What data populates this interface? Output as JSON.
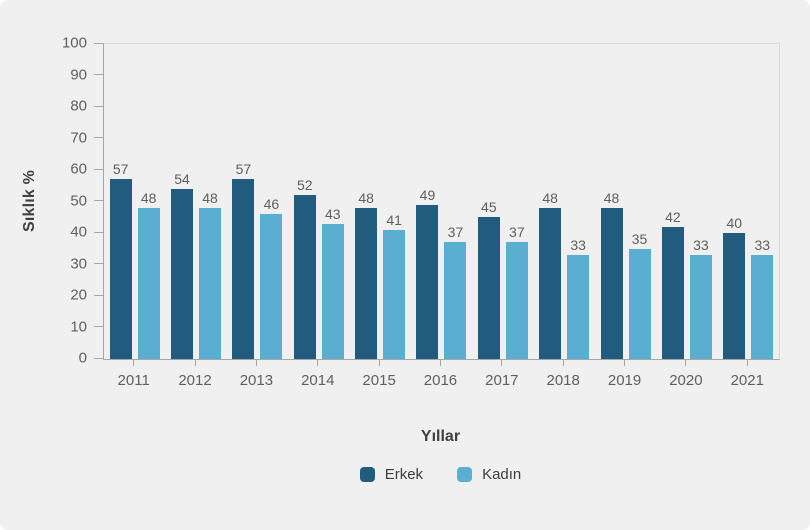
{
  "chart_data": {
    "type": "bar",
    "title": "",
    "xlabel": "Yıllar",
    "ylabel": "Sıklık %",
    "categories": [
      "2011",
      "2012",
      "2013",
      "2014",
      "2015",
      "2016",
      "2017",
      "2018",
      "2019",
      "2020",
      "2021"
    ],
    "series": [
      {
        "name": "Erkek",
        "color": "#215c7f",
        "values": [
          57,
          54,
          57,
          52,
          48,
          49,
          45,
          48,
          48,
          42,
          40
        ]
      },
      {
        "name": "Kadın",
        "color": "#5aaed2",
        "values": [
          48,
          48,
          46,
          43,
          41,
          37,
          37,
          33,
          35,
          33,
          33
        ]
      }
    ],
    "ylim": [
      0,
      100
    ],
    "yticks": [
      0,
      10,
      20,
      30,
      40,
      50,
      60,
      70,
      80,
      90,
      100
    ],
    "grid": false,
    "legend_position": "bottom",
    "value_labels": true
  },
  "colors": {
    "background": "#f0f0f0",
    "axis": "#a6a6a6",
    "plot_border": "#d9d9d9",
    "text_muted": "#5f5f5f",
    "text_strong": "#404040"
  }
}
